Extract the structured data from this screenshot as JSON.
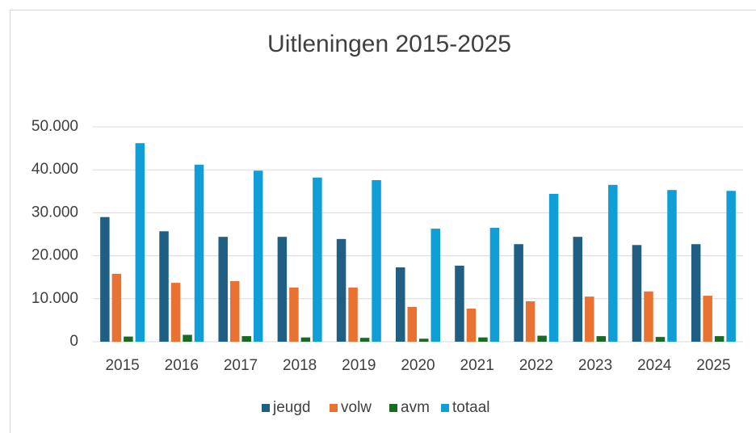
{
  "chart_data": {
    "type": "bar",
    "title": "Uitleningen 2015-2025",
    "categories": [
      "2015",
      "2016",
      "2017",
      "2018",
      "2019",
      "2020",
      "2021",
      "2022",
      "2023",
      "2024",
      "2025"
    ],
    "series": [
      {
        "name": "jeugd",
        "color": "#1f5f84",
        "values": [
          29000,
          25700,
          24400,
          24400,
          23900,
          17300,
          17700,
          22700,
          24400,
          22500,
          22700
        ]
      },
      {
        "name": "volw",
        "color": "#e97132",
        "values": [
          15800,
          13700,
          14100,
          12600,
          12600,
          8100,
          7700,
          9400,
          10500,
          11700,
          10700
        ]
      },
      {
        "name": "avm",
        "color": "#196b24",
        "values": [
          1200,
          1600,
          1300,
          1000,
          900,
          700,
          1000,
          1400,
          1300,
          1100,
          1300
        ]
      },
      {
        "name": "totaal",
        "color": "#0f9ed5",
        "values": [
          46200,
          41200,
          39800,
          38200,
          37600,
          26300,
          26500,
          34400,
          36500,
          35300,
          35100
        ]
      }
    ],
    "ylim": [
      0,
      50000
    ],
    "yticks": [
      0,
      {
        "value": 10000,
        "label": "10.000"
      },
      {
        "value": 20000,
        "label": "20.000"
      },
      {
        "value": 30000,
        "label": "30.000"
      },
      {
        "value": 40000,
        "label": "40.000"
      },
      {
        "value": 50000,
        "label": "50.000"
      }
    ],
    "grid": true,
    "legend": "bottom"
  }
}
